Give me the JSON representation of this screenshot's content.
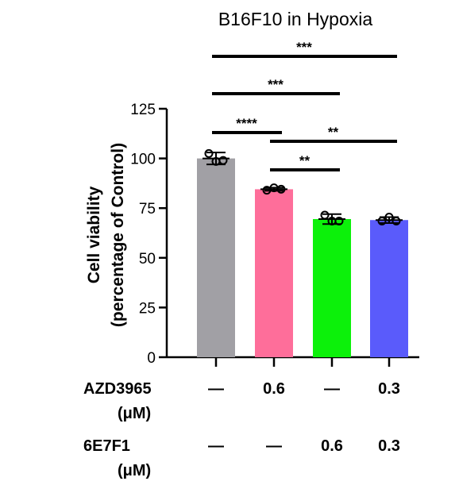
{
  "chart_data": {
    "type": "bar",
    "title": "B16F10 in Hypoxia",
    "ylabel_line1": "Cell viability",
    "ylabel_line2": "(percentage of Control)",
    "ylim": [
      0,
      125
    ],
    "yticks": [
      "0",
      "25",
      "50",
      "75",
      "100",
      "125"
    ],
    "ytick_values": [
      0,
      25,
      50,
      75,
      100,
      125
    ],
    "bars": [
      {
        "value": 100,
        "sd": 3.0,
        "points": [
          102.5,
          98.5,
          99.0
        ],
        "color": "#a1a0a5"
      },
      {
        "value": 84.5,
        "sd": 0.8,
        "points": [
          84.0,
          85.2,
          84.5
        ],
        "color": "#fe6e9a"
      },
      {
        "value": 69.5,
        "sd": 2.5,
        "points": [
          71.5,
          68.5,
          68.5
        ],
        "color": "#0cf10a"
      },
      {
        "value": 69.0,
        "sd": 1.5,
        "points": [
          68.5,
          70.5,
          68.5
        ],
        "color": "#5a5bfb"
      }
    ],
    "treatments": [
      {
        "name_line1": "AZD3965",
        "name_line2": "(μM)",
        "values": [
          "—",
          "0.6",
          "—",
          "0.3"
        ]
      },
      {
        "name_line1": "6E7F1",
        "name_line2": "(μM)",
        "values": [
          "—",
          "—",
          "0.6",
          "0.3"
        ]
      }
    ],
    "significance": [
      {
        "from": 0,
        "to": 3,
        "label": "***"
      },
      {
        "from": 0,
        "to": 2,
        "label": "***"
      },
      {
        "from": 0,
        "to": 1,
        "label": "****"
      },
      {
        "from": 1,
        "to": 3,
        "label": "**"
      },
      {
        "from": 1,
        "to": 2,
        "label": "**"
      }
    ],
    "grid": false
  }
}
